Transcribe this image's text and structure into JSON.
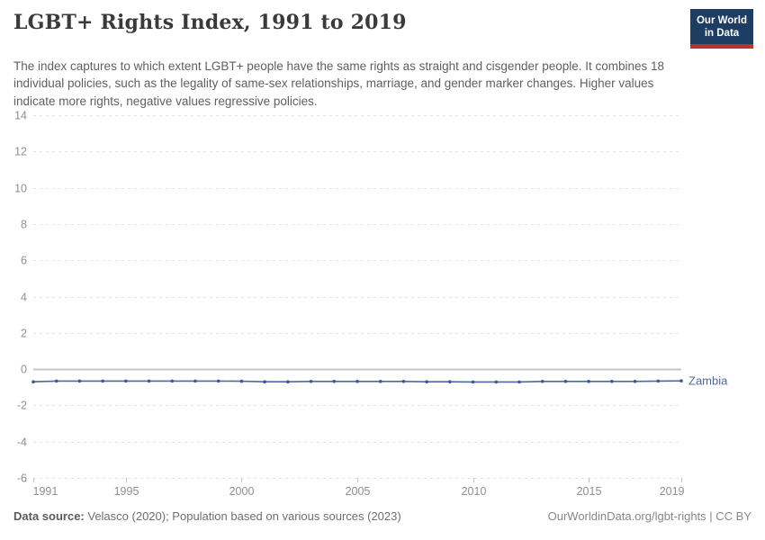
{
  "header": {
    "title": "LGBT+ Rights Index, 1991 to 2019",
    "logo": {
      "line1": "Our World",
      "line2": "in Data"
    }
  },
  "subtitle": "The index captures to which extent LGBT+ people have the same rights as straight and cisgender people. It combines 18 individual policies, such as the legality of same-sex relationships, marriage, and gender marker changes. Higher values indicate more rights, negative values regressive policies.",
  "footer": {
    "datasource_label": "Data source:",
    "datasource_text": " Velasco (2020); Population based on various sources (2023)",
    "credit": "OurWorldinData.org/lgbt-rights | CC BY"
  },
  "colors": {
    "line": "#4c6a9c",
    "marker": "#3d5a96",
    "entity_label": "#4c6a9c",
    "grid": "#e2e2e2",
    "zero_line": "#c6c6c6",
    "tick": "#c0c0c0",
    "axis_text": "#8f8f8f",
    "logo_bg": "#1d3d63",
    "logo_stripe": "#b5342c"
  },
  "chart_data": {
    "type": "line",
    "title": "LGBT+ Rights Index, 1991 to 2019",
    "xlabel": "",
    "ylabel": "",
    "ylim": [
      -6,
      14
    ],
    "yticks": [
      -6,
      -4,
      -2,
      0,
      2,
      4,
      6,
      8,
      10,
      12,
      14
    ],
    "xticks": [
      1991,
      1995,
      2000,
      2005,
      2010,
      2015,
      2019
    ],
    "grid": "horizontal-dashed",
    "legend_position": "end-of-line-label",
    "series": [
      {
        "name": "Zambia",
        "color": "#4c6a9c",
        "x": [
          1991,
          1992,
          1993,
          1994,
          1995,
          1996,
          1997,
          1998,
          1999,
          2000,
          2001,
          2002,
          2003,
          2004,
          2005,
          2006,
          2007,
          2008,
          2009,
          2010,
          2011,
          2012,
          2013,
          2014,
          2015,
          2016,
          2017,
          2018,
          2019
        ],
        "values": [
          -0.7,
          -0.66,
          -0.66,
          -0.66,
          -0.66,
          -0.66,
          -0.66,
          -0.66,
          -0.66,
          -0.67,
          -0.7,
          -0.7,
          -0.68,
          -0.68,
          -0.68,
          -0.68,
          -0.68,
          -0.7,
          -0.7,
          -0.71,
          -0.71,
          -0.71,
          -0.68,
          -0.68,
          -0.68,
          -0.68,
          -0.68,
          -0.66,
          -0.65
        ]
      }
    ]
  }
}
